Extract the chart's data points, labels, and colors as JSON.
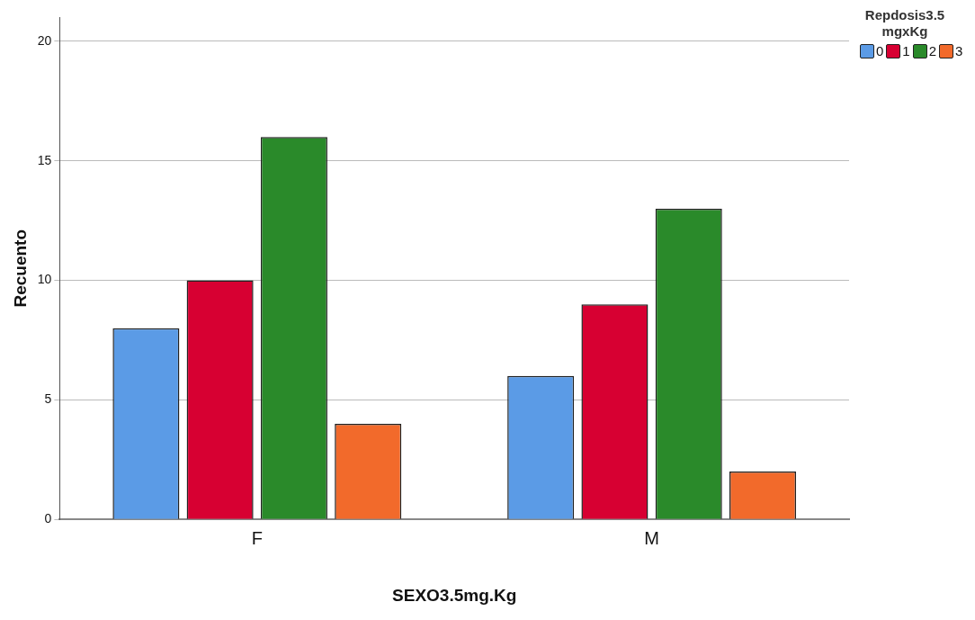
{
  "chart_data": {
    "type": "bar",
    "xlabel": "SEXO3.5mg.Kg",
    "ylabel": "Recuento",
    "legend_title": "Repdosis3.5mgxKg",
    "categories": [
      "F",
      "M"
    ],
    "series": [
      {
        "name": "0",
        "color": "#5b9be6",
        "values": [
          8,
          6
        ]
      },
      {
        "name": "1",
        "color": "#d70032",
        "values": [
          10,
          9
        ]
      },
      {
        "name": "2",
        "color": "#2a8a2a",
        "values": [
          16,
          13
        ]
      },
      {
        "name": "3",
        "color": "#f26a2b",
        "values": [
          4,
          2
        ]
      }
    ],
    "ylim": [
      0,
      21
    ],
    "yticks": [
      0,
      5,
      10,
      15,
      20
    ],
    "grid": "y",
    "legend": "top right"
  }
}
